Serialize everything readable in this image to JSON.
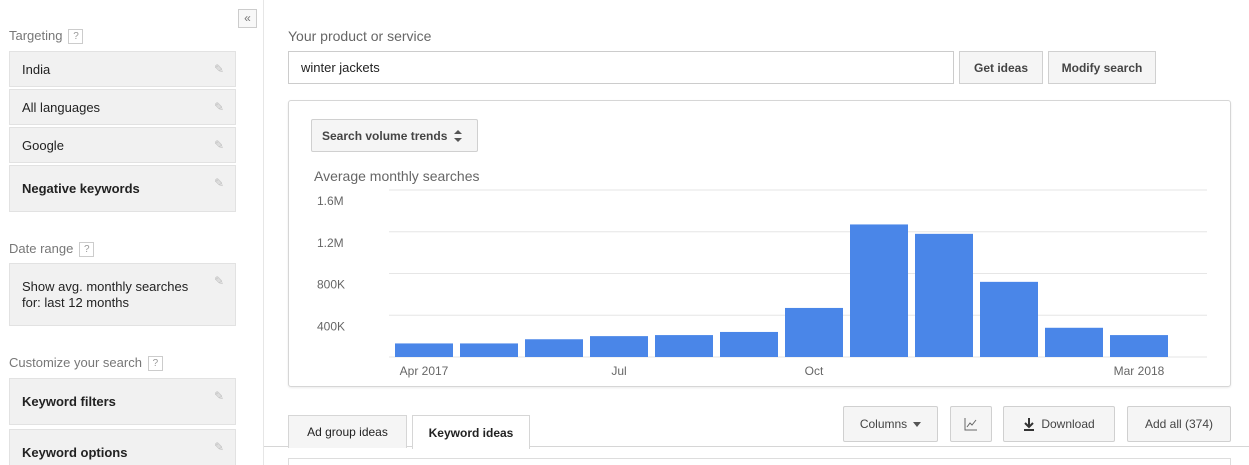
{
  "sidebar": {
    "collapse_label": "«",
    "targeting": {
      "label": "Targeting",
      "help": "?",
      "items": [
        {
          "label": "India"
        },
        {
          "label": "All languages"
        },
        {
          "label": "Google"
        },
        {
          "label": "Negative keywords"
        }
      ]
    },
    "date_range": {
      "label": "Date range",
      "help": "?",
      "value_line1": "Show avg. monthly searches",
      "value_line2": "for: last 12 months"
    },
    "customize": {
      "label": "Customize your search",
      "help": "?",
      "items": [
        {
          "label": "Keyword filters"
        },
        {
          "label": "Keyword options"
        }
      ]
    }
  },
  "main": {
    "product_label": "Your product or service",
    "search_value": "winter jackets",
    "get_ideas_label": "Get ideas",
    "modify_search_label": "Modify search",
    "trend_select_label": "Search volume trends",
    "chart_title": "Average monthly searches"
  },
  "tabs": [
    {
      "label": "Ad group ideas"
    },
    {
      "label": "Keyword ideas"
    }
  ],
  "toolbar": {
    "columns_label": "Columns",
    "download_label": "Download",
    "add_all_label": "Add all (374)"
  },
  "colors": {
    "bar": "#4a86e8",
    "grid": "#e6e6e6"
  },
  "icons": [
    "pencil-icon",
    "help-icon",
    "sort-arrows-icon",
    "dropdown-caret-icon",
    "line-chart-icon",
    "download-icon"
  ],
  "chart_data": {
    "type": "bar",
    "title": "Average monthly searches",
    "categories": [
      "Apr 2017",
      "May 2017",
      "Jun 2017",
      "Jul 2017",
      "Aug 2017",
      "Sep 2017",
      "Oct 2017",
      "Nov 2017",
      "Dec 2017",
      "Jan 2018",
      "Feb 2018",
      "Mar 2018"
    ],
    "x_tick_labels": [
      "Apr 2017",
      "Jul",
      "Oct",
      "Mar 2018"
    ],
    "values": [
      130000,
      130000,
      170000,
      200000,
      210000,
      240000,
      470000,
      1270000,
      1180000,
      720000,
      280000,
      210000
    ],
    "y_ticks": [
      "400K",
      "800K",
      "1.2M",
      "1.6M"
    ],
    "ylim": [
      0,
      1600000
    ],
    "grid": true
  }
}
